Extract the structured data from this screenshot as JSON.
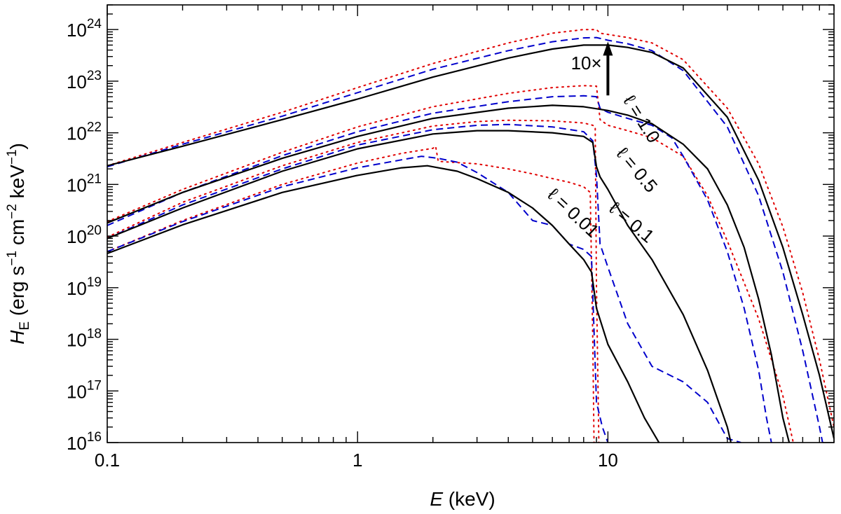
{
  "chart_data": {
    "type": "line",
    "xlabel": {
      "var": "E",
      "unit": " (keV)"
    },
    "ylabel": {
      "var": "H",
      "sub": "E",
      "pre": " (erg s",
      "exp1": "−1",
      "mid": " cm",
      "exp2": "−2",
      "mid2": " keV",
      "exp3": "−1",
      "post": ")"
    },
    "xscale": "log",
    "yscale": "log",
    "xlim": [
      0.1,
      80
    ],
    "ylim": [
      1e+16,
      3e+24
    ],
    "x_ticks": [
      {
        "value": 0.1,
        "label": "0.1"
      },
      {
        "value": 1,
        "label": "1"
      },
      {
        "value": 10,
        "label": "10"
      }
    ],
    "y_ticks": [
      {
        "value": 1e+16,
        "base": "10",
        "exp": "16"
      },
      {
        "value": 1e+17,
        "base": "10",
        "exp": "17"
      },
      {
        "value": 1e+18,
        "base": "10",
        "exp": "18"
      },
      {
        "value": 1e+19,
        "base": "10",
        "exp": "19"
      },
      {
        "value": 1e+20,
        "base": "10",
        "exp": "20"
      },
      {
        "value": 1e+21,
        "base": "10",
        "exp": "21"
      },
      {
        "value": 1e+22,
        "base": "10",
        "exp": "22"
      },
      {
        "value": 1e+23,
        "base": "10",
        "exp": "23"
      },
      {
        "value": 1e+24,
        "base": "10",
        "exp": "24"
      }
    ],
    "grid": false,
    "legend": "none",
    "line_styles": {
      "solid": {
        "color": "#000000",
        "dash": ""
      },
      "dashed": {
        "color": "#0000cc",
        "dash": "10,6"
      },
      "dotted": {
        "color": "#e00000",
        "dash": "2,6"
      }
    },
    "series": [
      {
        "group": "ℓ = 1.0",
        "style": "solid",
        "points": [
          [
            0.1,
            2.3e+21
          ],
          [
            0.2,
            5.5e+21
          ],
          [
            0.5,
            1.8e+22
          ],
          [
            1,
            4.5e+22
          ],
          [
            2,
            1.2e+23
          ],
          [
            4,
            2.8e+23
          ],
          [
            6,
            4.2e+23
          ],
          [
            8,
            5e+23
          ],
          [
            10,
            5e+23
          ],
          [
            12,
            4.5e+23
          ],
          [
            15,
            3.6e+23
          ],
          [
            20,
            1.8e+23
          ],
          [
            30,
            2e+22
          ],
          [
            40,
            1.2e+21
          ],
          [
            50,
            6e+19
          ],
          [
            60,
            3e+18
          ],
          [
            70,
            2e+17
          ],
          [
            80,
            1.2e+16
          ]
        ]
      },
      {
        "group": "ℓ = 1.0",
        "style": "dashed",
        "points": [
          [
            0.1,
            2.2e+21
          ],
          [
            0.2,
            6e+21
          ],
          [
            0.5,
            2.1e+22
          ],
          [
            1,
            6e+22
          ],
          [
            2,
            1.7e+23
          ],
          [
            4,
            3.9e+23
          ],
          [
            6,
            5.8e+23
          ],
          [
            8,
            6.9e+23
          ],
          [
            9,
            7e+23
          ],
          [
            10,
            6.2e+23
          ],
          [
            12,
            5.3e+23
          ],
          [
            15,
            3.9e+23
          ],
          [
            20,
            1.6e+23
          ],
          [
            30,
            1.3e+22
          ],
          [
            40,
            6e+20
          ],
          [
            50,
            2e+19
          ],
          [
            60,
            6e+17
          ],
          [
            70,
            2e+16
          ],
          [
            72,
            1e+16
          ]
        ]
      },
      {
        "group": "ℓ = 1.0",
        "style": "dotted",
        "points": [
          [
            0.1,
            2.3e+21
          ],
          [
            0.2,
            6.5e+21
          ],
          [
            0.5,
            2.5e+22
          ],
          [
            1,
            7.5e+22
          ],
          [
            2,
            2.2e+23
          ],
          [
            4,
            5.5e+23
          ],
          [
            6,
            8.5e+23
          ],
          [
            8,
            1e+24
          ],
          [
            9,
            1e+24
          ],
          [
            9.3,
            8.5e+23
          ],
          [
            12,
            7e+23
          ],
          [
            15,
            5.5e+23
          ],
          [
            20,
            2.6e+23
          ],
          [
            30,
            3e+22
          ],
          [
            40,
            2.5e+21
          ],
          [
            50,
            1.5e+20
          ],
          [
            60,
            8e+18
          ],
          [
            70,
            4e+17
          ],
          [
            80,
            2e+16
          ],
          [
            83,
            1e+16
          ]
        ]
      },
      {
        "group": "ℓ = 0.5",
        "style": "solid",
        "points": [
          [
            0.1,
            1.8e+20
          ],
          [
            0.2,
            7e+20
          ],
          [
            0.5,
            3.2e+21
          ],
          [
            1,
            8.5e+21
          ],
          [
            2,
            1.9e+22
          ],
          [
            4,
            3e+22
          ],
          [
            6,
            3.4e+22
          ],
          [
            8,
            3.2e+22
          ],
          [
            10,
            2.7e+22
          ],
          [
            12,
            2.2e+22
          ],
          [
            15,
            1.5e+22
          ],
          [
            20,
            6e+21
          ],
          [
            25,
            2e+21
          ],
          [
            30,
            4e+20
          ],
          [
            35,
            6e+19
          ],
          [
            40,
            6e+18
          ],
          [
            45,
            5e+17
          ],
          [
            50,
            3e+16
          ],
          [
            53,
            1e+16
          ]
        ]
      },
      {
        "group": "ℓ = 0.5",
        "style": "dashed",
        "points": [
          [
            0.1,
            1.6e+20
          ],
          [
            0.2,
            7e+20
          ],
          [
            0.5,
            3.6e+21
          ],
          [
            1,
            1.05e+22
          ],
          [
            2,
            2.4e+22
          ],
          [
            4,
            4e+22
          ],
          [
            6,
            5e+22
          ],
          [
            8,
            5.2e+22
          ],
          [
            9,
            5e+22
          ],
          [
            9.3,
            3e+22
          ],
          [
            10,
            2.5e+22
          ],
          [
            12,
            1.9e+22
          ],
          [
            15,
            1.4e+22
          ],
          [
            18,
            8e+21
          ],
          [
            20,
            3.5e+21
          ],
          [
            25,
            5e+20
          ],
          [
            30,
            5e+19
          ],
          [
            35,
            4e+18
          ],
          [
            40,
            2.5e+17
          ],
          [
            43,
            3e+16
          ],
          [
            45,
            1e+16
          ]
        ]
      },
      {
        "group": "ℓ = 0.5",
        "style": "dotted",
        "points": [
          [
            0.1,
            1.9e+20
          ],
          [
            0.2,
            8e+20
          ],
          [
            0.5,
            4.2e+21
          ],
          [
            1,
            1.3e+22
          ],
          [
            2,
            3.2e+22
          ],
          [
            4,
            5.8e+22
          ],
          [
            6,
            7.5e+22
          ],
          [
            8,
            8.2e+22
          ],
          [
            9,
            8e+22
          ],
          [
            9.3,
            1.8e+22
          ],
          [
            10,
            1.4e+22
          ],
          [
            12,
            1.1e+22
          ],
          [
            15,
            8e+21
          ],
          [
            20,
            3.5e+21
          ],
          [
            25,
            6e+20
          ],
          [
            30,
            8e+19
          ],
          [
            40,
            2.5e+18
          ],
          [
            50,
            8e+16
          ],
          [
            55,
            1e+16
          ]
        ]
      },
      {
        "group": "ℓ = 0.1",
        "style": "solid",
        "points": [
          [
            0.1,
            9e+19
          ],
          [
            0.2,
            3.5e+20
          ],
          [
            0.5,
            1.8e+21
          ],
          [
            1,
            4.9e+21
          ],
          [
            2,
            9.5e+21
          ],
          [
            3,
            1.1e+22
          ],
          [
            4,
            1.1e+22
          ],
          [
            6,
            1e+22
          ],
          [
            8,
            8.5e+21
          ],
          [
            8.7,
            6.5e+21
          ],
          [
            9.0,
            2.2e+21
          ],
          [
            9.3,
            1.4e+21
          ],
          [
            10,
            8e+20
          ],
          [
            12,
            1.6e+20
          ],
          [
            15,
            3.5e+19
          ],
          [
            20,
            3e+18
          ],
          [
            25,
            2.5e+17
          ],
          [
            30,
            2e+16
          ],
          [
            31,
            1e+16
          ]
        ]
      },
      {
        "group": "ℓ = 0.1",
        "style": "dashed",
        "points": [
          [
            0.1,
            9e+19
          ],
          [
            0.2,
            4e+20
          ],
          [
            0.5,
            2e+21
          ],
          [
            1,
            5.8e+21
          ],
          [
            2,
            1.15e+22
          ],
          [
            3,
            1.4e+22
          ],
          [
            4,
            1.45e+22
          ],
          [
            6,
            1.3e+22
          ],
          [
            8,
            1.05e+22
          ],
          [
            8.7,
            7e+21
          ],
          [
            9.0,
            1.5e+21
          ],
          [
            9.3,
            7e+19
          ],
          [
            10,
            2.5e+19
          ],
          [
            12,
            2e+18
          ],
          [
            15,
            3e+17
          ],
          [
            20,
            1.5e+17
          ],
          [
            25,
            6e+16
          ],
          [
            30,
            1.2e+16
          ],
          [
            34,
            1e+16
          ]
        ]
      },
      {
        "group": "ℓ = 0.1",
        "style": "dotted",
        "points": [
          [
            0.1,
            9.5e+19
          ],
          [
            0.2,
            4.5e+20
          ],
          [
            0.5,
            2.3e+21
          ],
          [
            1,
            6.5e+21
          ],
          [
            2,
            1.35e+22
          ],
          [
            3,
            1.65e+22
          ],
          [
            4,
            1.75e+22
          ],
          [
            6,
            1.7e+22
          ],
          [
            8,
            1.55e+22
          ],
          [
            8.7,
            1.4e+22
          ],
          [
            8.9,
            1.3e+22
          ],
          [
            9.0,
            1e+19
          ],
          [
            9.2,
            1e+16
          ]
        ]
      },
      {
        "group": "ℓ = 0.01",
        "style": "solid",
        "points": [
          [
            0.1,
            4.6e+19
          ],
          [
            0.2,
            1.65e+20
          ],
          [
            0.5,
            7e+20
          ],
          [
            1,
            1.5e+21
          ],
          [
            1.5,
            2.1e+21
          ],
          [
            1.9,
            2.3e+21
          ],
          [
            2.1,
            2.1e+21
          ],
          [
            2.5,
            1.8e+21
          ],
          [
            3,
            1.3e+21
          ],
          [
            4,
            7e+20
          ],
          [
            5,
            3.5e+20
          ],
          [
            6,
            1.6e+20
          ],
          [
            7,
            7e+19
          ],
          [
            8,
            3.5e+19
          ],
          [
            8.6,
            2e+19
          ],
          [
            9.0,
            4e+18
          ],
          [
            10,
            8e+17
          ],
          [
            12,
            1.5e+17
          ],
          [
            14,
            3e+16
          ],
          [
            16,
            1e+16
          ]
        ]
      },
      {
        "group": "ℓ = 0.01",
        "style": "dashed",
        "points": [
          [
            0.1,
            5e+19
          ],
          [
            0.2,
            1.9e+20
          ],
          [
            0.5,
            9e+20
          ],
          [
            1,
            2.1e+21
          ],
          [
            1.5,
            3e+21
          ],
          [
            1.8,
            3.5e+21
          ],
          [
            2.0,
            3.3e+21
          ],
          [
            2.1,
            3.2e+21
          ],
          [
            2.5,
            2.7e+21
          ],
          [
            3,
            1.7e+21
          ],
          [
            4,
            7e+20
          ],
          [
            5,
            2e+20
          ],
          [
            6,
            1.6e+20
          ],
          [
            7,
            7e+19
          ],
          [
            8,
            5.5e+19
          ],
          [
            8.6,
            4e+19
          ],
          [
            9.0,
            6e+16
          ],
          [
            9.5,
            2e+16
          ],
          [
            10,
            1e+16
          ]
        ]
      },
      {
        "group": "ℓ = 0.01",
        "style": "dotted",
        "points": [
          [
            0.1,
            5e+19
          ],
          [
            0.2,
            2e+20
          ],
          [
            0.5,
            1e+21
          ],
          [
            1,
            2.6e+21
          ],
          [
            1.5,
            4e+21
          ],
          [
            2.0,
            5e+21
          ],
          [
            2.05,
            5.5e+21
          ],
          [
            2.1,
            2.8e+21
          ],
          [
            3,
            2.5e+21
          ],
          [
            4,
            2e+21
          ],
          [
            5,
            1.6e+21
          ],
          [
            6,
            1.3e+21
          ],
          [
            7,
            1.1e+21
          ],
          [
            8,
            9e+20
          ],
          [
            8.5,
            7e+20
          ],
          [
            8.7,
            1e+18
          ],
          [
            8.8,
            1e+16
          ]
        ]
      }
    ],
    "annotations": [
      {
        "text": "ℓ = 1.0",
        "x": 13,
        "y": 1.6e+22,
        "rotate": 58
      },
      {
        "text": "ℓ = 0.5",
        "x": 12.5,
        "y": 1.6e+21,
        "rotate": 50
      },
      {
        "text": "ℓ = 0.1",
        "x": 12,
        "y": 1.5e+20,
        "rotate": 40
      },
      {
        "text": "ℓ = 0.01",
        "x": 7,
        "y": 2.3e+20,
        "rotate": 43
      },
      {
        "text": "10×",
        "x": 8.2,
        "y": 1.7e+23,
        "rotate": 0
      }
    ],
    "arrow": {
      "x": 10,
      "from": 5.3e+22,
      "to": 5.5e+23,
      "label": "10×"
    }
  }
}
